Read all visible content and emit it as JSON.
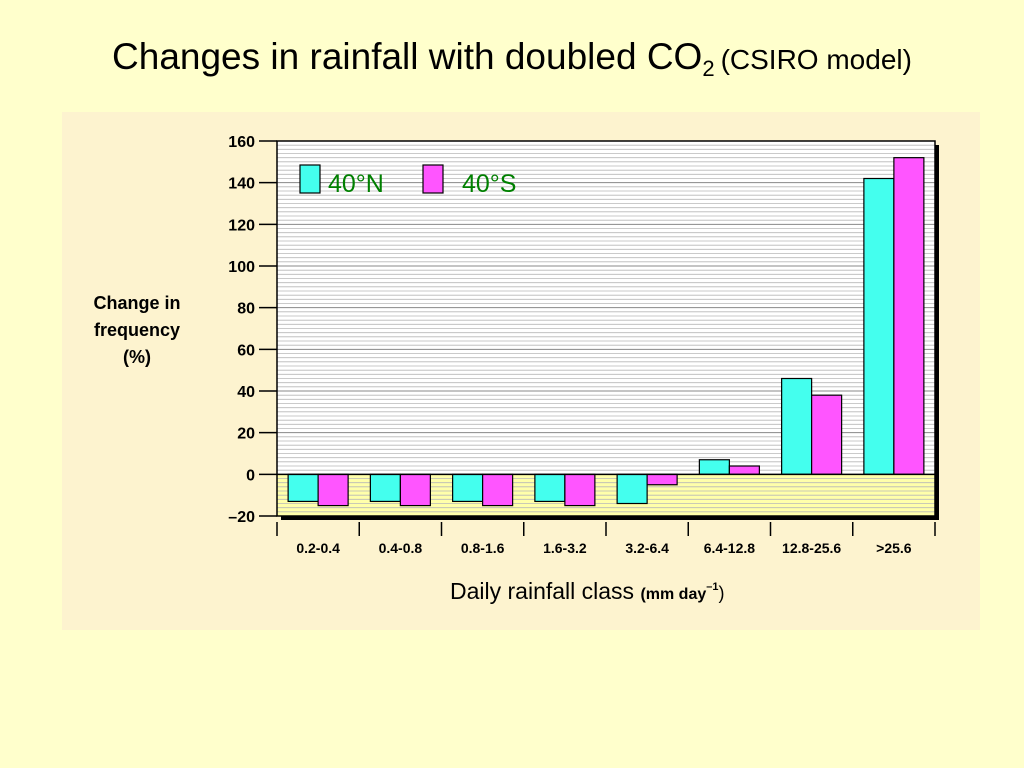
{
  "slide": {
    "title_main": "Changes in rainfall with doubled CO",
    "title_sub": "2",
    "title_paren": "(CSIRO model)"
  },
  "chart_data": {
    "type": "bar",
    "ylabel_lines": [
      "Change in",
      "frequency",
      "(%)"
    ],
    "xlabel_main": "Daily rainfall class ",
    "xlabel_unit": "(mm day",
    "xlabel_sup": "–1",
    "xlabel_close": ")",
    "categories": [
      "0.2-0.4",
      "0.4-0.8",
      "0.8-1.6",
      "1.6-3.2",
      "3.2-6.4",
      "6.4-12.8",
      "12.8-25.6",
      ">25.6"
    ],
    "series": [
      {
        "name": "40°N",
        "color": "#44ffee",
        "values": [
          -13,
          -13,
          -13,
          -13,
          -14,
          7,
          46,
          142
        ]
      },
      {
        "name": "40°S",
        "color": "#ff55ff",
        "values": [
          -15,
          -15,
          -15,
          -15,
          -5,
          4,
          38,
          152
        ]
      }
    ],
    "ylim": [
      -20,
      160
    ],
    "yticks": [
      -20,
      0,
      20,
      40,
      60,
      80,
      100,
      120,
      140,
      160
    ],
    "ytick_labels": [
      "–20",
      "0",
      "20",
      "40",
      "60",
      "80",
      "100",
      "120",
      "140",
      "160"
    ],
    "grid": "horizontal",
    "legend_position": "top-left",
    "plot_colors": {
      "positive_area": "#ffffff",
      "negative_area": "#ffffaa",
      "grid": "#b8b8b8"
    }
  }
}
